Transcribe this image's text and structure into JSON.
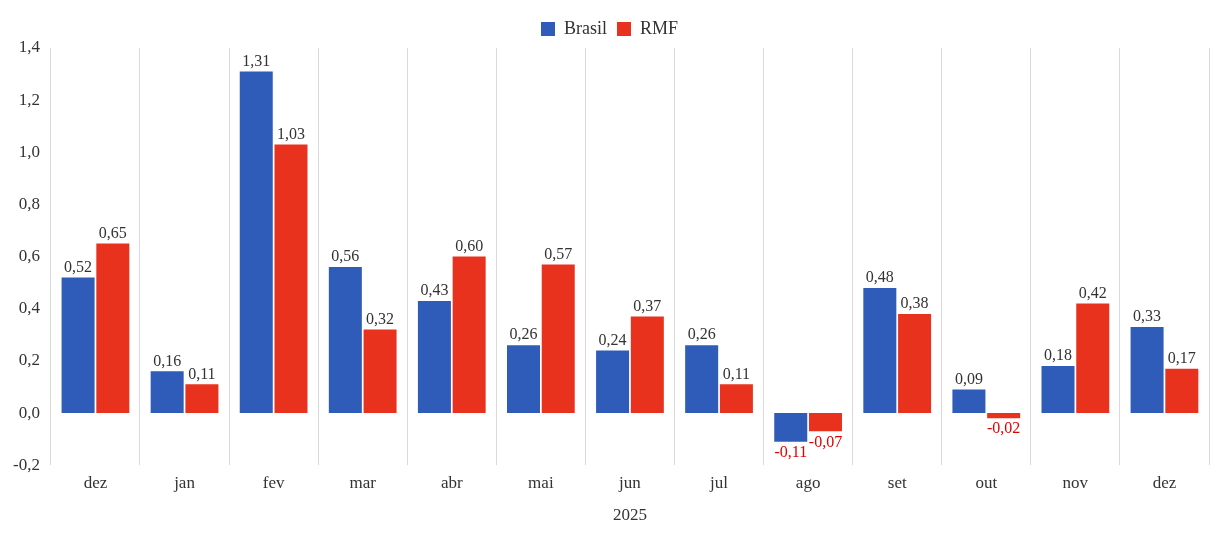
{
  "chart_data": {
    "type": "bar",
    "xlabel": "2025",
    "categories": [
      "dez",
      "jan",
      "fev",
      "mar",
      "abr",
      "mai",
      "jun",
      "jul",
      "ago",
      "set",
      "out",
      "nov",
      "dez"
    ],
    "series": [
      {
        "name": "Brasil",
        "color": "#2e5cb8",
        "values": [
          0.52,
          0.16,
          1.31,
          0.56,
          0.43,
          0.26,
          0.24,
          0.26,
          -0.11,
          0.48,
          0.09,
          0.18,
          0.33
        ],
        "value_labels": [
          "0,52",
          "0,16",
          "1,31",
          "0,56",
          "0,43",
          "0,26",
          "0,24",
          "0,26",
          "-0,11",
          "0,48",
          "0,09",
          "0,18",
          "0,33"
        ]
      },
      {
        "name": "RMF",
        "color": "#e8321e",
        "values": [
          0.65,
          0.11,
          1.03,
          0.32,
          0.6,
          0.57,
          0.37,
          0.11,
          -0.07,
          0.38,
          -0.02,
          0.42,
          0.17
        ],
        "value_labels": [
          "0,65",
          "0,11",
          "1,03",
          "0,32",
          "0,60",
          "0,57",
          "0,37",
          "0,11",
          "-0,07",
          "0,38",
          "-0,02",
          "0,42",
          "0,17"
        ]
      }
    ],
    "ylim": [
      -0.2,
      1.4
    ],
    "yticks": [
      {
        "value": -0.2,
        "label": "-0,2"
      },
      {
        "value": 0,
        "label": "0,0"
      },
      {
        "value": 0.2,
        "label": "0,2"
      },
      {
        "value": 0.4,
        "label": "0,4"
      },
      {
        "value": 0.6,
        "label": "0,6"
      },
      {
        "value": 0.8,
        "label": "0,8"
      },
      {
        "value": 1.0,
        "label": "1,0"
      },
      {
        "value": 1.2,
        "label": "1,2"
      },
      {
        "value": 1.4,
        "label": "1,4"
      }
    ],
    "grid": "x",
    "legend": "top"
  }
}
